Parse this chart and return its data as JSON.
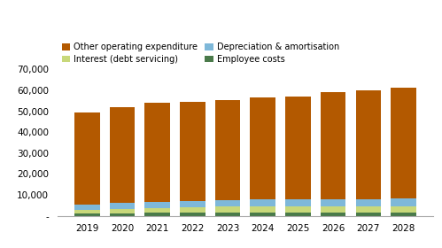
{
  "years": [
    2019,
    2020,
    2021,
    2022,
    2023,
    2024,
    2025,
    2026,
    2027,
    2028
  ],
  "employee_costs": [
    1200,
    1300,
    1400,
    1400,
    1500,
    1500,
    1500,
    1500,
    1500,
    1600
  ],
  "interest_debt": [
    1800,
    2000,
    2200,
    2500,
    2800,
    3000,
    3000,
    2800,
    2800,
    2900
  ],
  "depreciation": [
    2500,
    2800,
    3000,
    3000,
    3200,
    3500,
    3500,
    3500,
    3500,
    3600
  ],
  "other_opex": [
    44000,
    46000,
    47500,
    47800,
    48000,
    48500,
    49000,
    51200,
    52200,
    53000
  ],
  "color_employee": "#4a7a4a",
  "color_interest": "#c8d87a",
  "color_depreciation": "#7eb8d9",
  "color_other": "#b35900",
  "legend_labels": [
    "Other operating expenditure",
    "Depreciation & amortisation",
    "Interest (debt servicing)",
    "Employee costs"
  ],
  "ylim": [
    0,
    70000
  ],
  "yticks": [
    0,
    10000,
    20000,
    30000,
    40000,
    50000,
    60000,
    70000
  ],
  "ytick_labels": [
    "-",
    "10,000",
    "20,000",
    "30,000",
    "40,000",
    "50,000",
    "60,000",
    "70,000"
  ],
  "bg_color": "#ffffff",
  "bar_width": 0.72
}
